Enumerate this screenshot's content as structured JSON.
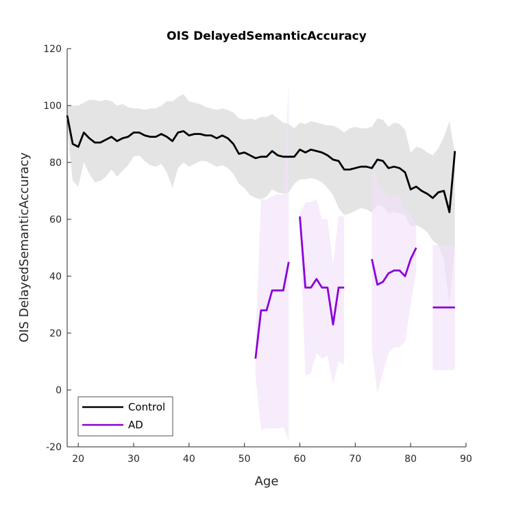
{
  "chart_data": {
    "type": "line",
    "title": "OIS DelayedSemanticAccuracy",
    "xlabel": "Age",
    "ylabel": "OIS DelayedSemanticAccuracy",
    "xlim": [
      18,
      90
    ],
    "ylim": [
      -20,
      120
    ],
    "xticks": [
      20,
      30,
      40,
      50,
      60,
      70,
      80,
      90
    ],
    "yticks": [
      -20,
      0,
      20,
      40,
      60,
      80,
      100,
      120
    ],
    "grid": false,
    "legend_position": "bottom-left",
    "series": [
      {
        "name": "Control",
        "color": "#000000",
        "band_color": "#d9d9d9",
        "x": [
          18,
          19,
          20,
          21,
          22,
          23,
          24,
          25,
          26,
          27,
          28,
          29,
          30,
          31,
          32,
          33,
          34,
          35,
          36,
          37,
          38,
          39,
          40,
          41,
          42,
          43,
          44,
          45,
          46,
          47,
          48,
          49,
          50,
          51,
          52,
          53,
          54,
          55,
          56,
          57,
          58,
          59,
          60,
          61,
          62,
          63,
          64,
          65,
          66,
          67,
          68,
          69,
          70,
          71,
          72,
          73,
          74,
          75,
          76,
          77,
          78,
          79,
          80,
          81,
          82,
          83,
          84,
          85,
          86,
          87,
          88
        ],
        "y": [
          96.5,
          86.5,
          85.5,
          90.5,
          88.5,
          87,
          87,
          88,
          89,
          87.5,
          88.5,
          89,
          90.5,
          90.5,
          89.5,
          89,
          89,
          90,
          89,
          87.5,
          90.5,
          91,
          89.5,
          90,
          90,
          89.5,
          89.5,
          88.5,
          89.5,
          88.5,
          86.5,
          83,
          83.5,
          82.5,
          81.5,
          82,
          82,
          84,
          82.5,
          82,
          82,
          82,
          84.5,
          83.5,
          84.5,
          84,
          83.5,
          82.5,
          81,
          80.5,
          77.5,
          77.5,
          78,
          78.5,
          78.5,
          78,
          81,
          80.5,
          78,
          78.5,
          78,
          76.5,
          70.5,
          71.5,
          70,
          69,
          67.5,
          69.5,
          70,
          62.5,
          84
        ],
        "lower": [
          92,
          73.5,
          71.5,
          80,
          76,
          73,
          73.5,
          75,
          77.5,
          75,
          77,
          79,
          82,
          82.5,
          80.5,
          79,
          78.5,
          79.5,
          76.5,
          71,
          78,
          80,
          78.5,
          79.5,
          80.5,
          80.5,
          79.5,
          78.5,
          79,
          78,
          76,
          72.5,
          71,
          68.5,
          67.5,
          67,
          68,
          70.5,
          69.5,
          69,
          69.5,
          72.5,
          74,
          74,
          74.5,
          74,
          73,
          71,
          68.5,
          64,
          61.5,
          62,
          63,
          64,
          63.5,
          62.5,
          65,
          64.5,
          62,
          62.5,
          62,
          61.5,
          57.5,
          58,
          57,
          55.5,
          52.5,
          51,
          46,
          30,
          51.5
        ],
        "upper": [
          100,
          100,
          100,
          101,
          102,
          102,
          101.5,
          102,
          101.5,
          100,
          100.5,
          99.5,
          99,
          99,
          98.5,
          99,
          99,
          100,
          101.5,
          101.5,
          103,
          104,
          101.5,
          101,
          100.5,
          99.5,
          99,
          98.5,
          99,
          98.5,
          97.5,
          95.5,
          95,
          95.5,
          95,
          96,
          96,
          97,
          95.5,
          94,
          93.5,
          92,
          94,
          93.5,
          94.5,
          94,
          93.5,
          93,
          93,
          92,
          90.5,
          92,
          92.5,
          92,
          92,
          92.5,
          95.5,
          95,
          92.5,
          94,
          93.5,
          91.5,
          83.5,
          85.5,
          85,
          83.5,
          82.5,
          85,
          89,
          94.5,
          83
        ]
      },
      {
        "name": "AD",
        "color": "#8b00d6",
        "band_color": "#f1e1f8",
        "segments": [
          {
            "x": [
              52,
              53,
              54,
              55,
              56,
              57,
              58
            ],
            "y": [
              11,
              28,
              28,
              35,
              35,
              35,
              45
            ],
            "lower": [
              5,
              -14,
              -13.5,
              -13.5,
              -13.5,
              -13,
              -18
            ],
            "upper": [
              17,
              67,
              67,
              68,
              69,
              68.5,
              108
            ]
          },
          {
            "x": [
              60,
              61,
              62,
              63,
              64,
              65,
              66,
              67,
              68
            ],
            "y": [
              61,
              36,
              36,
              39,
              36,
              36,
              23,
              36,
              36
            ],
            "lower": [
              60,
              5,
              6,
              13,
              11,
              12,
              2,
              10,
              9
            ],
            "upper": [
              62,
              66,
              66,
              67,
              60,
              60,
              44,
              61,
              61
            ]
          },
          {
            "x": [
              73,
              74,
              75,
              76,
              77,
              78,
              79,
              80,
              81
            ],
            "y": [
              46,
              37,
              38,
              41,
              42,
              42,
              40,
              46,
              50
            ],
            "lower": [
              14,
              -1,
              6,
              13,
              15,
              15,
              17,
              30,
              42
            ],
            "upper": [
              83,
              73,
              70,
              68,
              68,
              69,
              63,
              62,
              58
            ]
          },
          {
            "x": [
              84,
              85,
              86,
              87,
              88
            ],
            "y": [
              29,
              29,
              29,
              29,
              29
            ],
            "lower": [
              7,
              7,
              7,
              7,
              7
            ],
            "upper": [
              51,
              51,
              51,
              51,
              51
            ]
          }
        ]
      }
    ]
  }
}
